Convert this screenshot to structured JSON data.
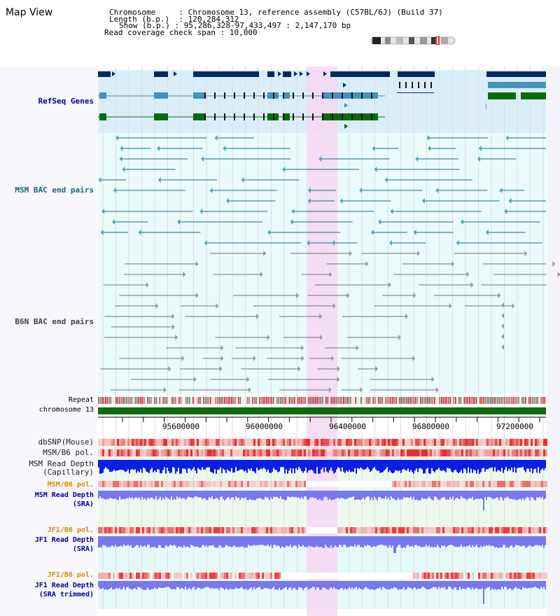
{
  "header": {
    "title": "Map View",
    "info": {
      "chromosome_label": "Chromosome",
      "chromosome_value": "Chromosome 13, reference assembly (C57BL/6J) (Build 37)",
      "length_label": "Length (b.p.)",
      "length_value": "120,284,312",
      "show_label": "Show (b.p.)",
      "show_value": "95,286,328-97,433,497 : 2,147,170 bp",
      "coverage_label": "Read coverage check span",
      "coverage_value": "10,000"
    }
  },
  "tracks": {
    "refseq": "RefSeq Genes",
    "msm_bac": "MSM BAC end pairs",
    "b6n_bac": "B6N BAC end pairs",
    "repeat": "Repeat",
    "chromosome": "chromosome 13",
    "dbsnp": "dbSNP(Mouse)",
    "msm_b6_pol": "MSM/B6 pol.",
    "msm_read_depth_cap_1": "MSM Read Depth",
    "msm_read_depth_cap_2": "(Capillary)",
    "msm_b6_pol_sra": "MSM/B6 pol.",
    "msm_read_depth_sra_1": "MSM Read Depth",
    "msm_read_depth_sra_2": "(SRA)",
    "jf1_b6_pol": "JF1/B6 pol.",
    "jf1_read_depth_1": "JF1 Read Depth",
    "jf1_read_depth_2": "(SRA)",
    "jf1_b6_pol_2": "JF1/B6 pol.",
    "jf1_read_depth_trim_1": "JF1 Read Depth",
    "jf1_read_depth_trim_2": "(SRA trimmed)"
  },
  "axis": {
    "ticks": [
      "95600000",
      "96000000",
      "96400000",
      "96800000",
      "97200000"
    ]
  },
  "colors": {
    "refseq_bg": "#daeefa",
    "bac_bg": "#e9fbfb",
    "highlight": "#f6d8f3",
    "gene_navy": "#002a5c",
    "gene_blue": "#4592bd",
    "gene_green": "#0a6b0a",
    "msm_line": "#1b6a84",
    "b6n_line": "#707070",
    "blue_label": "#0000a0",
    "orange_label": "#d38d00",
    "teal_label": "#116a77"
  }
}
